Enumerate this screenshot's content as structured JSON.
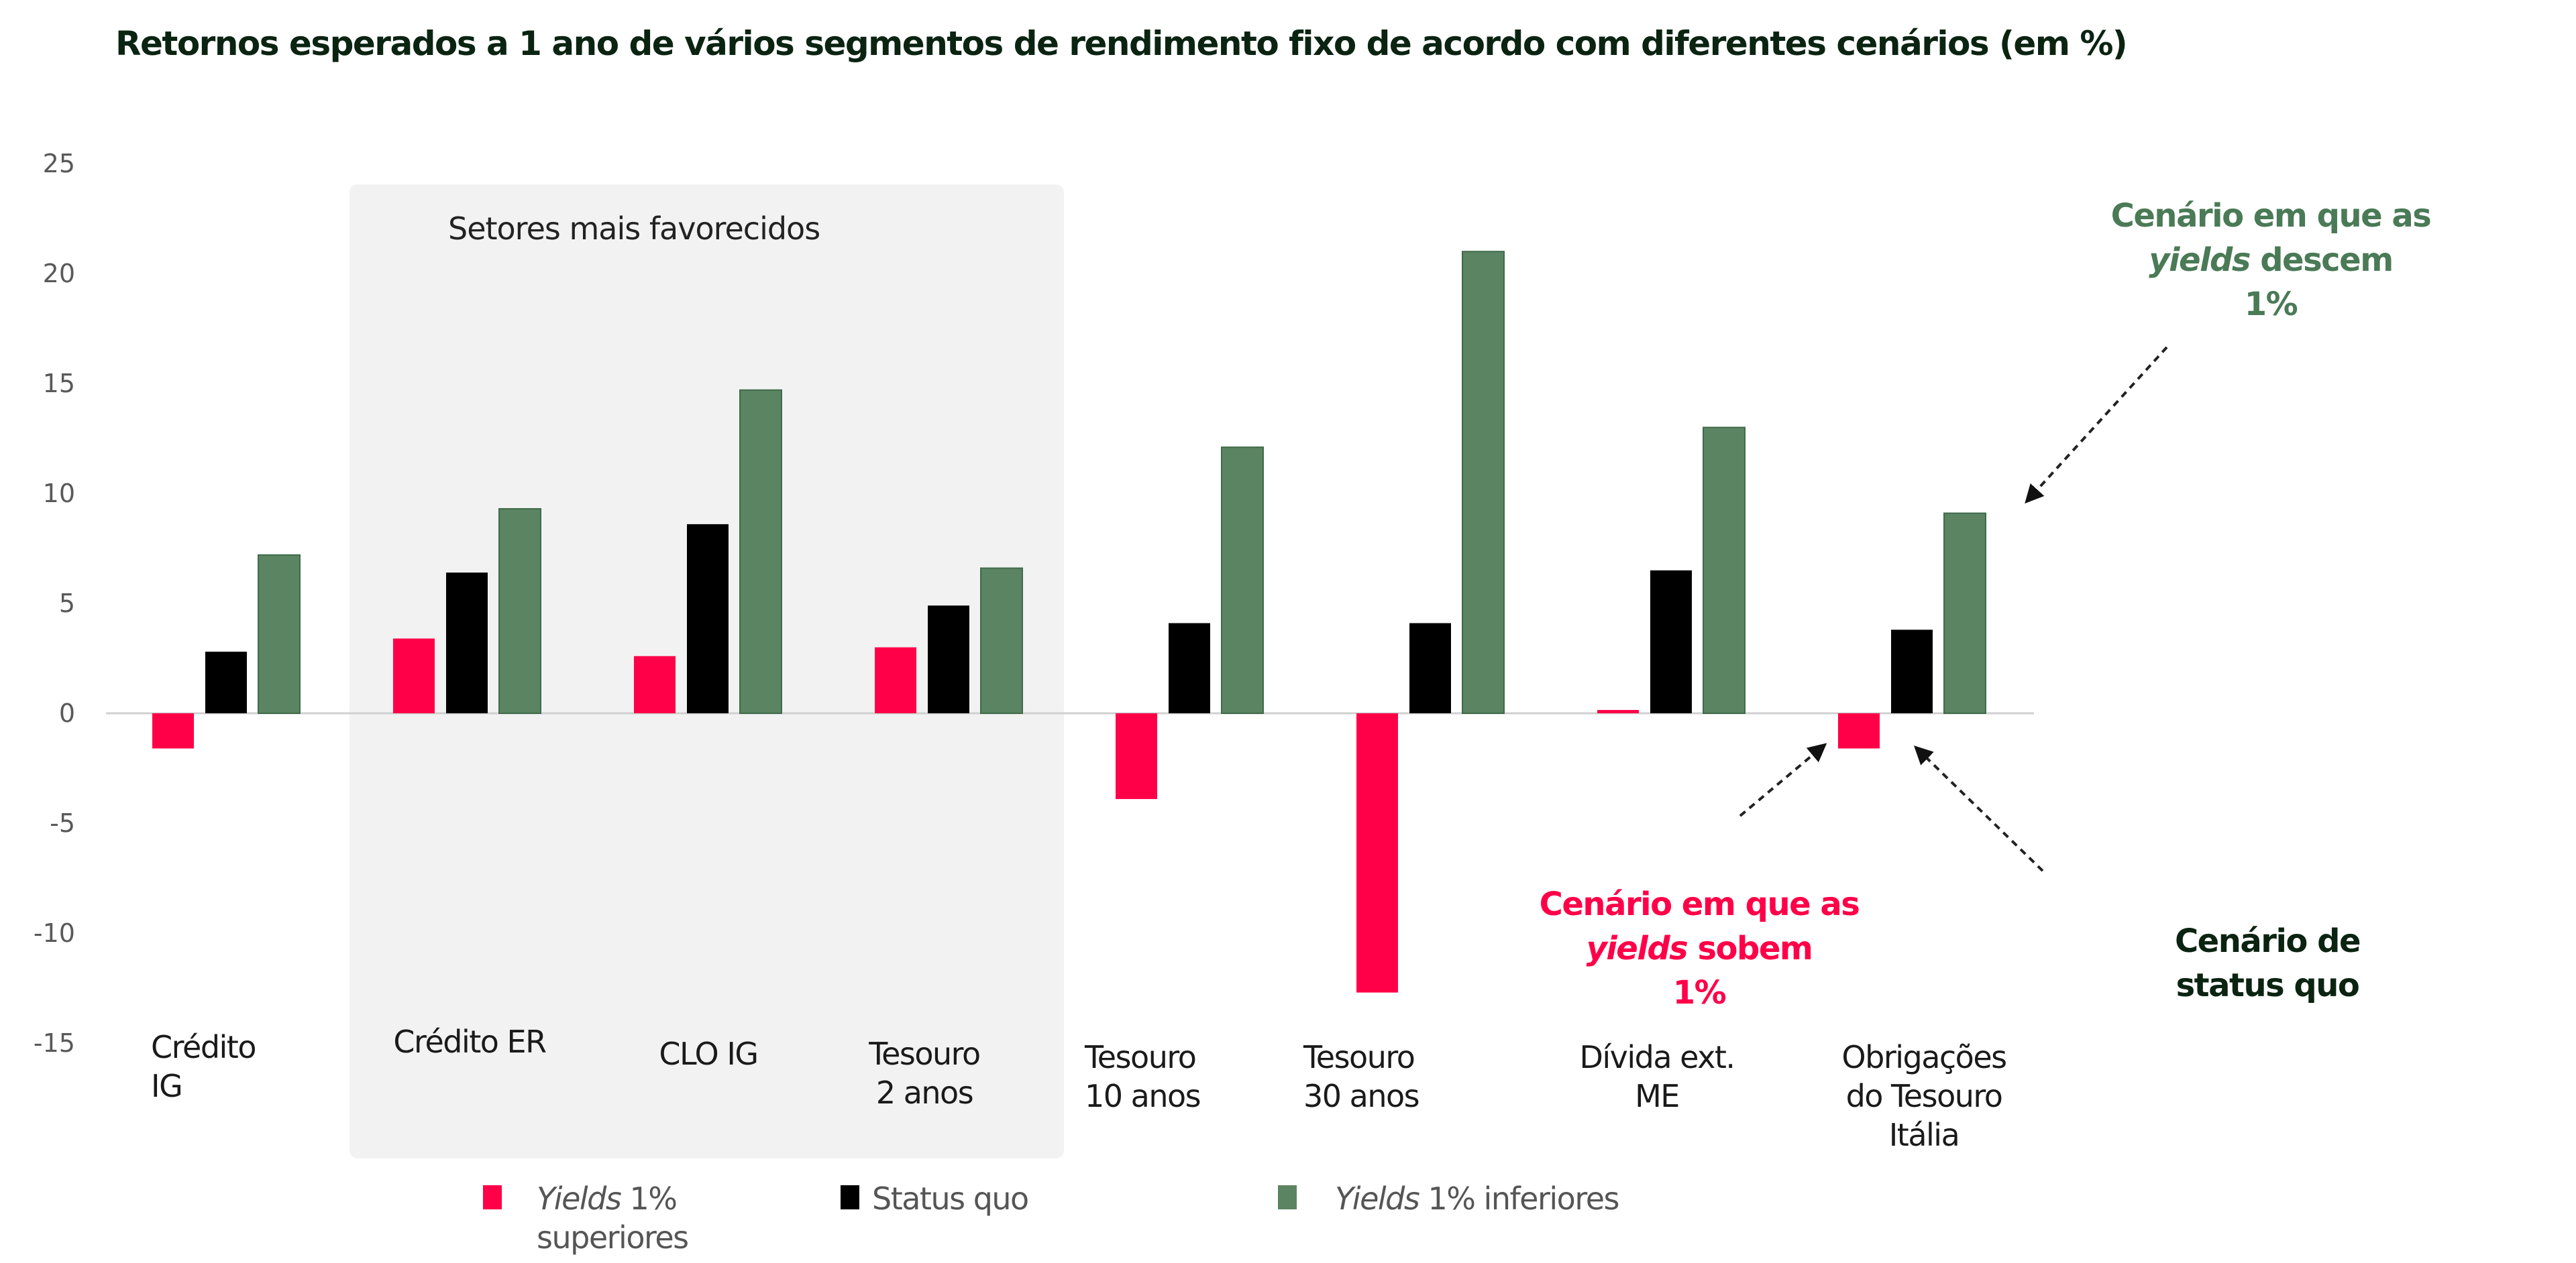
{
  "chart_data": {
    "type": "bar",
    "title": "Retornos esperados a 1 ano de vários segmentos de rendimento fixo de acordo com diferentes cenários (em %)",
    "xlabel": "",
    "ylabel": "",
    "ylim": [
      -15,
      25
    ],
    "yticks": [
      25,
      20,
      15,
      10,
      5,
      0,
      -5,
      -10,
      -15
    ],
    "grid": false,
    "categories": [
      [
        "Crédito",
        "IG"
      ],
      [
        "Crédito ER"
      ],
      [
        "CLO IG"
      ],
      [
        "Tesouro",
        "2 anos"
      ],
      [
        "Tesouro",
        "10 anos"
      ],
      [
        "Tesouro",
        "30 anos"
      ],
      [
        "Dívida ext.",
        "ME"
      ],
      [
        "Obrigações",
        "do Tesouro",
        "Itália"
      ]
    ],
    "series": [
      {
        "name": "Yields 1% superiores",
        "color": "#ff0048",
        "values": [
          -1.6,
          3.4,
          2.6,
          3.0,
          -3.9,
          -12.7,
          0.15,
          -1.6
        ]
      },
      {
        "name": "Status quo",
        "color": "#000000",
        "values": [
          2.8,
          6.4,
          8.6,
          4.9,
          4.1,
          4.1,
          6.5,
          3.8
        ]
      },
      {
        "name": "Yields 1% inferiores",
        "color": "#5b8463",
        "values": [
          7.2,
          9.3,
          14.7,
          6.6,
          12.1,
          21.0,
          13.0,
          9.1
        ]
      }
    ],
    "highlight_box": {
      "label": "Setores mais favorecidos",
      "categories": [
        "Crédito ER",
        "CLO IG",
        "Tesouro 2 anos"
      ],
      "color": "#f2f2f2"
    },
    "legend": {
      "placement": "bottom",
      "items": [
        {
          "italic": "Yields",
          "rest": " 1%",
          "line2": "superiores",
          "color": "#ff0048"
        },
        {
          "italic": "",
          "rest": "Status quo",
          "line2": "",
          "color": "#000000"
        },
        {
          "italic": "Yields",
          "rest": " 1% inferiores",
          "line2": "",
          "color": "#5b8463"
        }
      ]
    },
    "annotations": [
      {
        "id": "down",
        "color": "#4a7a56",
        "lines": [
          [
            "Cenário em que as"
          ],
          [
            "*yields",
            " descem"
          ],
          [
            "1%"
          ]
        ]
      },
      {
        "id": "up",
        "color": "#ff0048",
        "lines": [
          [
            "Cenário em que as"
          ],
          [
            "*yields",
            " sobem"
          ],
          [
            "1%"
          ]
        ]
      },
      {
        "id": "statusquo",
        "color": "#0b2412",
        "lines": [
          [
            "Cenário de"
          ],
          [
            "status quo"
          ]
        ]
      }
    ]
  }
}
